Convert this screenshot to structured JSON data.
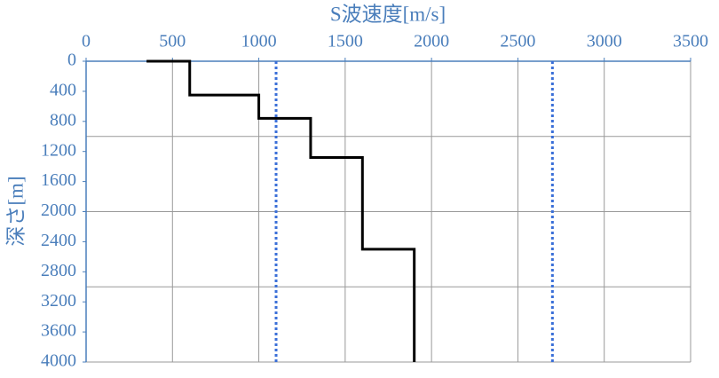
{
  "chart_data": {
    "type": "line",
    "title": "S波速度[m/s]",
    "y_label": "深さ[m]",
    "xlim": [
      0,
      3500
    ],
    "xticks": [
      0,
      500,
      1000,
      1500,
      2000,
      2500,
      3000,
      3500
    ],
    "ylim": [
      0,
      4000
    ],
    "yticks": [
      0,
      400,
      800,
      1200,
      1600,
      2000,
      2400,
      2800,
      3200,
      3600,
      4000
    ],
    "ygrid": [
      1000,
      2000,
      3000,
      4000
    ],
    "y_reversed": true,
    "grid": true,
    "axis_color": "#4a7ebb",
    "series": [
      {
        "color": "#000000",
        "dash": false,
        "x": [
          350,
          600,
          600,
          1000,
          1000,
          1300,
          1300,
          1600,
          1600,
          1900,
          1900
        ],
        "values": [
          0,
          0,
          450,
          450,
          760,
          760,
          1280,
          1280,
          2500,
          2500,
          4000
        ]
      },
      {
        "color": "#3a6fd8",
        "dash": true,
        "x": [
          1100,
          1100
        ],
        "values": [
          0,
          4000
        ]
      },
      {
        "color": "#3a6fd8",
        "dash": true,
        "x": [
          2700,
          2700
        ],
        "values": [
          0,
          4000
        ]
      }
    ]
  }
}
